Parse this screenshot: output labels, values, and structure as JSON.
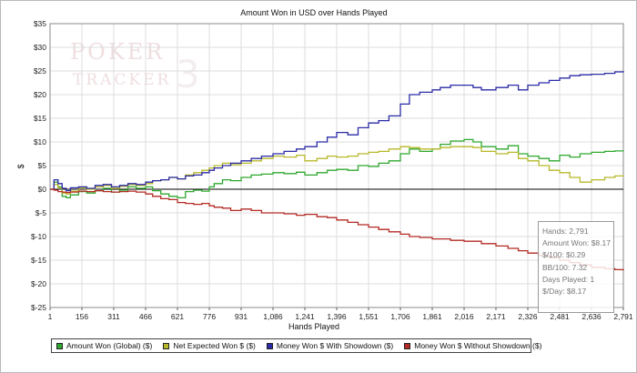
{
  "colors": {
    "amount_won": "#2fa82f",
    "net_expected": "#b8b82a",
    "showdown": "#2b2ba6",
    "non_showdown": "#b32a24",
    "zero_line": "#000000",
    "grid": "#dcdcdc",
    "watermark": "#e6c8cc"
  },
  "watermark": {
    "line1": "POKER",
    "line2": "TRACKER",
    "numeral": "3"
  },
  "legend": [
    {
      "label": "Amount Won (Global) ($)",
      "color": "#2fa82f"
    },
    {
      "label": "Net Expected Won $ ($)",
      "color": "#b8b82a"
    },
    {
      "label": "Money Won $ With Showdown ($)",
      "color": "#2b2ba6"
    },
    {
      "label": "Money Won $ Without Showdown ($)",
      "color": "#b32a24"
    }
  ],
  "stats": {
    "hands": "Hands: 2,791",
    "amount_won": "Amount Won: $8.17",
    "per_100": "$/100: $0.29",
    "bb_per_100": "BB/100: 7.32",
    "days_played": "Days Played: 1",
    "per_day": "$/Day: $8.17"
  },
  "chart_data": {
    "type": "line",
    "title": "Amount Won in USD over Hands Played",
    "xlabel": "Hands Played",
    "ylabel": "$",
    "xlim": [
      1,
      2791
    ],
    "ylim": [
      -25,
      35
    ],
    "grid": true,
    "legend_position": "bottom",
    "x_ticks": [
      1,
      156,
      311,
      466,
      621,
      776,
      931,
      1086,
      1241,
      1396,
      1551,
      1706,
      1861,
      2016,
      2171,
      2326,
      2481,
      2636,
      2791
    ],
    "x_tick_labels": [
      "1",
      "156",
      "311",
      "466",
      "621",
      "776",
      "931",
      "1,086",
      "1,241",
      "1,396",
      "1,551",
      "1,706",
      "1,861",
      "2,016",
      "2,171",
      "2,326",
      "2,481",
      "2,636",
      "2,791"
    ],
    "y_ticks": [
      35,
      30,
      25,
      20,
      15,
      10,
      5,
      0,
      -5,
      -10,
      -15,
      -20,
      -25
    ],
    "y_tick_labels": [
      "$35",
      "$30",
      "$25",
      "$20",
      "$15",
      "$10",
      "$5",
      "$0",
      "$-5",
      "$-10",
      "$-15",
      "$-20",
      "$-25"
    ],
    "series": [
      {
        "name": "Amount Won (Global) ($)",
        "color": "#2fa82f",
        "x": [
          1,
          20,
          40,
          60,
          80,
          100,
          140,
          180,
          220,
          260,
          300,
          340,
          380,
          420,
          466,
          500,
          540,
          580,
          621,
          660,
          700,
          740,
          776,
          800,
          840,
          880,
          931,
          980,
          1030,
          1086,
          1140,
          1200,
          1241,
          1300,
          1350,
          1396,
          1450,
          1500,
          1551,
          1600,
          1650,
          1706,
          1750,
          1800,
          1861,
          1900,
          1950,
          2016,
          2060,
          2100,
          2171,
          2230,
          2280,
          2326,
          2380,
          2430,
          2481,
          2530,
          2580,
          2636,
          2700,
          2750,
          2791
        ],
        "y": [
          0,
          1.5,
          0.5,
          -1.5,
          -1.8,
          -1.2,
          -0.5,
          -0.8,
          -0.3,
          0.2,
          -0.6,
          -0.2,
          0.5,
          0.2,
          0.5,
          -0.3,
          -1.0,
          -1.5,
          -1.8,
          -0.5,
          -0.2,
          -0.4,
          0.5,
          1.2,
          2.0,
          1.8,
          2.5,
          3.0,
          3.2,
          3.5,
          3.3,
          3.6,
          3.0,
          3.5,
          4.0,
          4.2,
          4.0,
          5.0,
          4.8,
          5.5,
          6.0,
          7.5,
          8.5,
          8.0,
          8.5,
          9.5,
          10.2,
          10.5,
          10.0,
          9.0,
          8.5,
          9.2,
          7.5,
          7.0,
          6.5,
          6.0,
          7.2,
          6.8,
          7.5,
          7.8,
          8.0,
          8.1,
          8.17
        ]
      },
      {
        "name": "Net Expected Won $ ($)",
        "color": "#b8b82a",
        "x": [
          1,
          20,
          40,
          60,
          80,
          100,
          140,
          180,
          220,
          260,
          300,
          340,
          380,
          420,
          466,
          500,
          540,
          580,
          621,
          660,
          700,
          740,
          776,
          800,
          840,
          880,
          931,
          980,
          1030,
          1086,
          1140,
          1200,
          1241,
          1300,
          1350,
          1396,
          1450,
          1500,
          1551,
          1600,
          1650,
          1706,
          1750,
          1800,
          1861,
          1900,
          1950,
          2016,
          2060,
          2100,
          2171,
          2230,
          2280,
          2326,
          2380,
          2430,
          2481,
          2530,
          2580,
          2636,
          2700,
          2750,
          2791
        ],
        "y": [
          0,
          1.0,
          0.3,
          -0.8,
          -1.0,
          -0.4,
          0.3,
          0.0,
          0.5,
          0.8,
          0.2,
          0.6,
          1.0,
          0.8,
          1.2,
          1.8,
          2.0,
          2.5,
          2.2,
          3.0,
          3.5,
          4.0,
          4.5,
          5.0,
          5.5,
          5.2,
          5.5,
          6.0,
          6.5,
          7.0,
          6.8,
          7.2,
          6.0,
          6.5,
          7.0,
          6.8,
          7.0,
          7.5,
          7.8,
          8.0,
          8.5,
          9.0,
          8.8,
          8.5,
          8.5,
          8.8,
          9.0,
          9.0,
          8.8,
          8.0,
          7.5,
          7.8,
          6.5,
          6.0,
          5.0,
          4.0,
          3.5,
          2.5,
          1.5,
          2.0,
          2.5,
          2.8,
          3.0
        ]
      },
      {
        "name": "Money Won $ With Showdown ($)",
        "color": "#2b2ba6",
        "x": [
          1,
          20,
          40,
          60,
          80,
          100,
          140,
          180,
          220,
          260,
          300,
          340,
          380,
          420,
          466,
          500,
          540,
          580,
          621,
          660,
          700,
          740,
          776,
          800,
          840,
          880,
          931,
          980,
          1030,
          1086,
          1140,
          1200,
          1241,
          1300,
          1350,
          1396,
          1450,
          1500,
          1551,
          1600,
          1650,
          1706,
          1750,
          1800,
          1861,
          1900,
          1950,
          2016,
          2060,
          2100,
          2171,
          2230,
          2280,
          2326,
          2380,
          2430,
          2481,
          2530,
          2580,
          2636,
          2700,
          2750,
          2791
        ],
        "y": [
          0,
          2.0,
          1.2,
          0.2,
          -0.3,
          0.3,
          0.5,
          0.2,
          0.8,
          1.0,
          0.5,
          0.8,
          1.2,
          1.0,
          1.5,
          1.8,
          2.0,
          2.5,
          2.2,
          2.8,
          3.0,
          3.5,
          4.0,
          4.5,
          5.0,
          5.5,
          6.0,
          6.5,
          7.0,
          7.5,
          8.0,
          8.5,
          9.0,
          10.0,
          11.0,
          12.0,
          11.5,
          13.0,
          14.0,
          14.5,
          15.5,
          18.0,
          20.0,
          20.5,
          21.0,
          21.5,
          22.0,
          22.0,
          21.5,
          21.0,
          21.5,
          22.0,
          21.0,
          22.0,
          22.5,
          23.0,
          23.5,
          24.0,
          24.2,
          24.3,
          24.5,
          24.8,
          25.0
        ]
      },
      {
        "name": "Money Won $ Without Showdown ($)",
        "color": "#b32a24",
        "x": [
          1,
          20,
          40,
          60,
          80,
          100,
          140,
          180,
          220,
          260,
          300,
          340,
          380,
          420,
          466,
          500,
          540,
          580,
          621,
          660,
          700,
          740,
          776,
          800,
          840,
          880,
          931,
          980,
          1030,
          1086,
          1140,
          1200,
          1241,
          1300,
          1350,
          1396,
          1450,
          1500,
          1551,
          1600,
          1650,
          1706,
          1750,
          1800,
          1861,
          1900,
          1950,
          2016,
          2060,
          2100,
          2171,
          2230,
          2280,
          2326,
          2380,
          2430,
          2481,
          2530,
          2580,
          2636,
          2700,
          2750,
          2791
        ],
        "y": [
          0,
          -0.2,
          -0.5,
          -0.6,
          -0.7,
          -0.6,
          -0.4,
          -0.5,
          -0.3,
          -0.5,
          -0.6,
          -0.5,
          -0.4,
          -0.6,
          -1.0,
          -1.5,
          -2.0,
          -2.2,
          -2.8,
          -3.0,
          -3.2,
          -3.0,
          -3.5,
          -3.8,
          -4.0,
          -4.5,
          -4.2,
          -4.5,
          -5.0,
          -5.0,
          -5.2,
          -5.5,
          -5.3,
          -5.8,
          -6.0,
          -6.5,
          -7.0,
          -7.5,
          -8.0,
          -8.5,
          -9.0,
          -9.5,
          -10.0,
          -10.2,
          -10.5,
          -10.5,
          -10.8,
          -11.0,
          -11.0,
          -11.5,
          -12.0,
          -12.5,
          -13.0,
          -13.5,
          -14.0,
          -14.5,
          -15.0,
          -15.5,
          -16.0,
          -16.5,
          -16.8,
          -17.0,
          -17.2
        ]
      }
    ]
  }
}
